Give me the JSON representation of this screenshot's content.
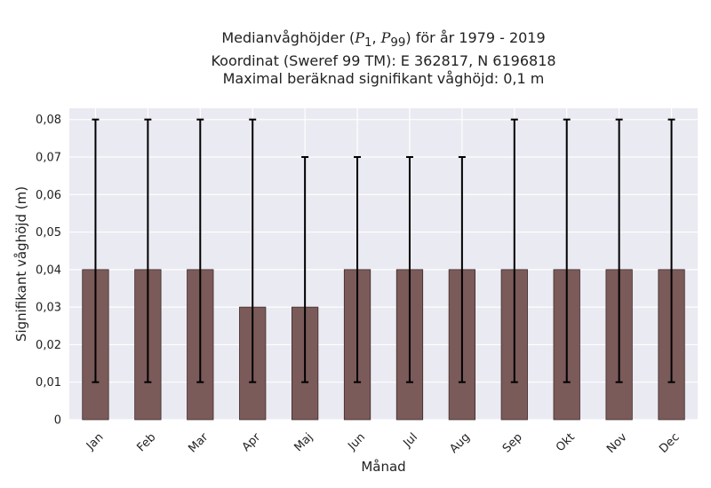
{
  "chart_data": {
    "type": "bar",
    "title_lines": [
      "Medianvåghöjder (P1, P99) för år 1979 - 2019",
      "Koordinat (Sweref 99 TM): E 362817, N 6196818",
      "Maximal beräknad signifikant våghöjd: 0,1 m"
    ],
    "title_math": {
      "prefix": "Medianvåghöjder ",
      "p_low": "P",
      "p_low_sub": "1",
      "p_high": "P",
      "p_high_sub": "99",
      "suffix": " för år 1979 - 2019"
    },
    "xlabel": "Månad",
    "ylabel": "Signifikant våghöjd (m)",
    "categories": [
      "Jan",
      "Feb",
      "Mar",
      "Apr",
      "Maj",
      "Jun",
      "Jul",
      "Aug",
      "Sep",
      "Okt",
      "Nov",
      "Dec"
    ],
    "series": [
      {
        "values": [
          0.04,
          0.04,
          0.04,
          0.03,
          0.03,
          0.04,
          0.04,
          0.04,
          0.04,
          0.04,
          0.04,
          0.04
        ],
        "p1": [
          0.01,
          0.01,
          0.01,
          0.01,
          0.01,
          0.01,
          0.01,
          0.01,
          0.01,
          0.01,
          0.01,
          0.01
        ],
        "p99": [
          0.08,
          0.08,
          0.08,
          0.08,
          0.07,
          0.07,
          0.07,
          0.07,
          0.08,
          0.08,
          0.08,
          0.08
        ]
      }
    ],
    "ylim": [
      0,
      0.083
    ],
    "yticks": [
      0,
      0.01,
      0.02,
      0.03,
      0.04,
      0.05,
      0.06,
      0.07,
      0.08
    ],
    "ytick_labels": [
      "0",
      "0,01",
      "0,02",
      "0,03",
      "0,04",
      "0,05",
      "0,06",
      "0,07",
      "0,08"
    ],
    "grid": true,
    "colors": {
      "bar": "#7b5a5a",
      "bar_edge": "#3e2a2a",
      "error": "#000000",
      "plot_bg": "#eaeaf2",
      "grid": "#ffffff"
    }
  }
}
